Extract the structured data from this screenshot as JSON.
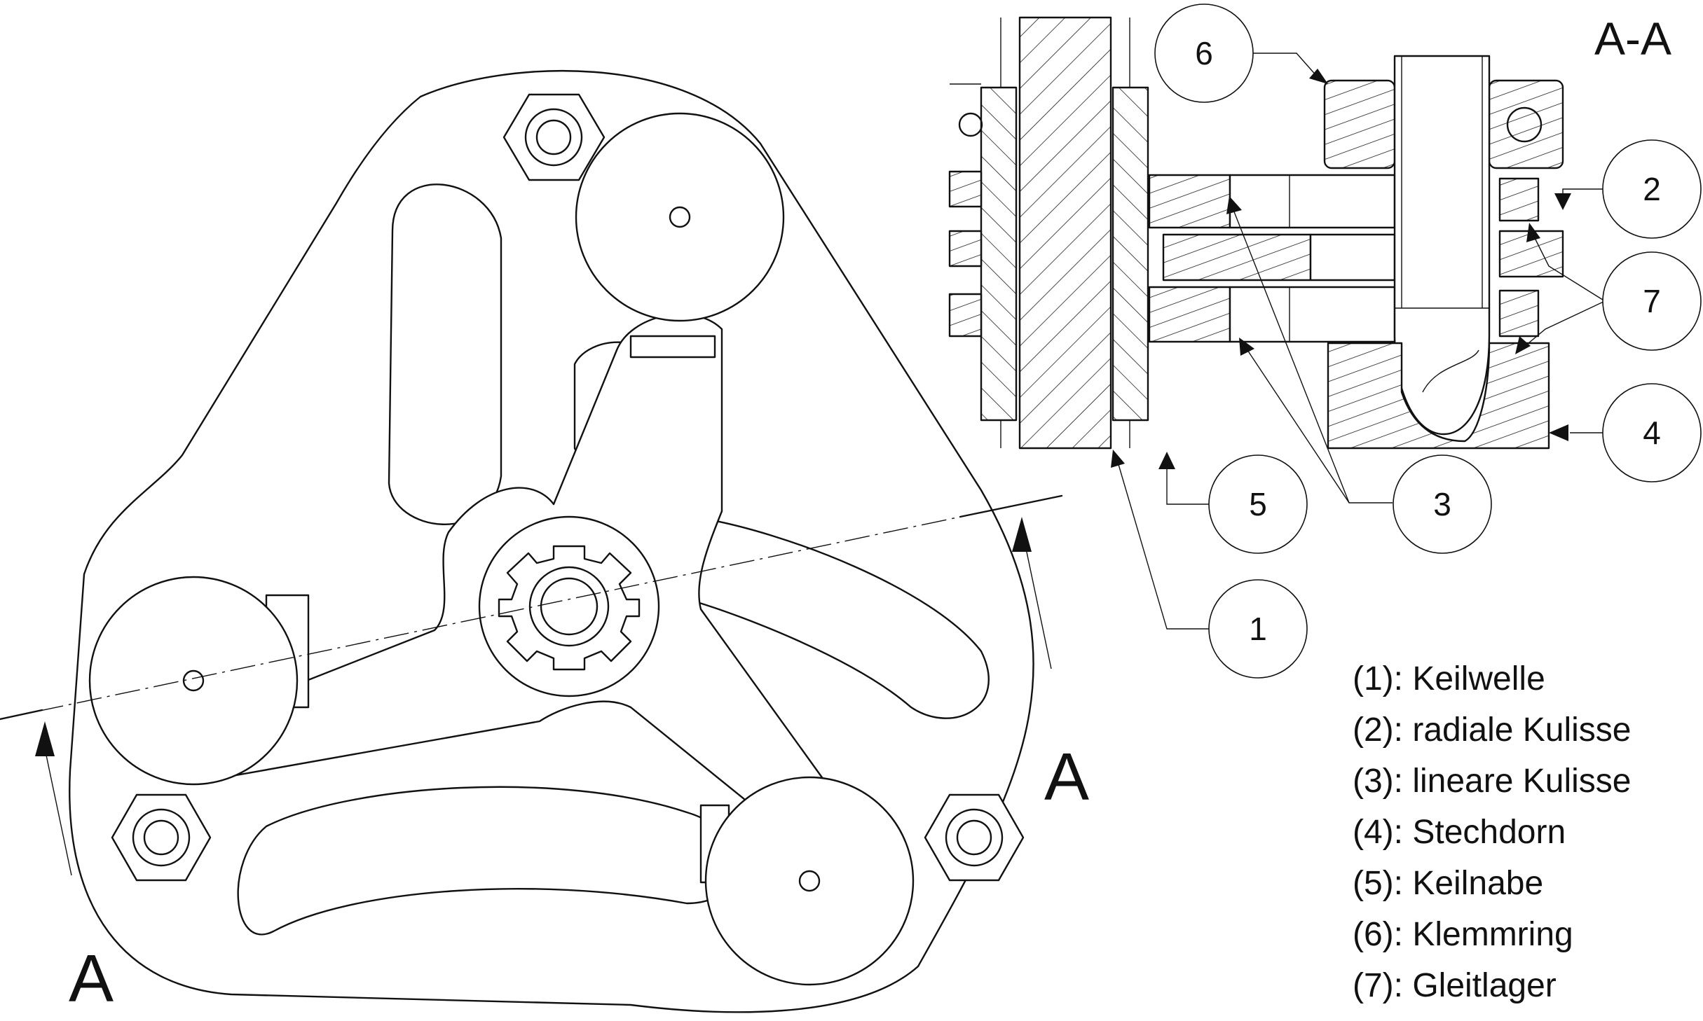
{
  "section_title": "A-A",
  "section_marker": "A",
  "balloons": [
    {
      "number": "6"
    },
    {
      "number": "2"
    },
    {
      "number": "7"
    },
    {
      "number": "4"
    },
    {
      "number": "5"
    },
    {
      "number": "3"
    },
    {
      "number": "1"
    }
  ],
  "legend": [
    {
      "text": "(1): Keilwelle"
    },
    {
      "text": "(2): radiale Kulisse"
    },
    {
      "text": "(3): lineare Kulisse"
    },
    {
      "text": "(4): Stechdorn"
    },
    {
      "text": "(5): Keilnabe"
    },
    {
      "text": "(6): Klemmring"
    },
    {
      "text": "(7): Gleitlager"
    }
  ]
}
